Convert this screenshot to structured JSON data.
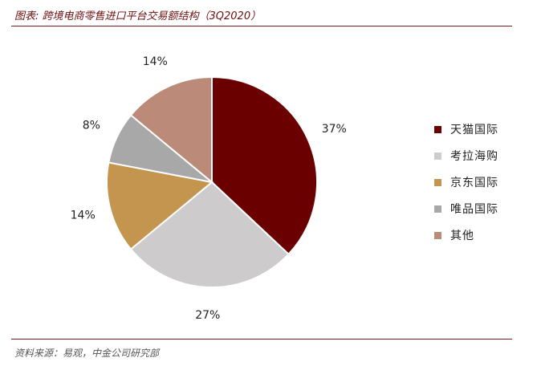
{
  "header": {
    "title": "图表: 跨境电商零售进口平台交易额结构（3Q2020）"
  },
  "footer": {
    "source": "资料来源：易观，中金公司研究部"
  },
  "chart_data": {
    "type": "pie",
    "title": "",
    "legend_position": "right",
    "slices": [
      {
        "label": "天猫国际",
        "value": 37,
        "value_label": "37%",
        "color": "#6b0000"
      },
      {
        "label": "考拉海购",
        "value": 27,
        "value_label": "27%",
        "color": "#cdcbcb"
      },
      {
        "label": "京东国际",
        "value": 14,
        "value_label": "14%",
        "color": "#c4954e"
      },
      {
        "label": "唯品国际",
        "value": 8,
        "value_label": "8%",
        "color": "#a8a8a8"
      },
      {
        "label": "其他",
        "value": 14,
        "value_label": "14%",
        "color": "#bb8a78"
      }
    ]
  }
}
